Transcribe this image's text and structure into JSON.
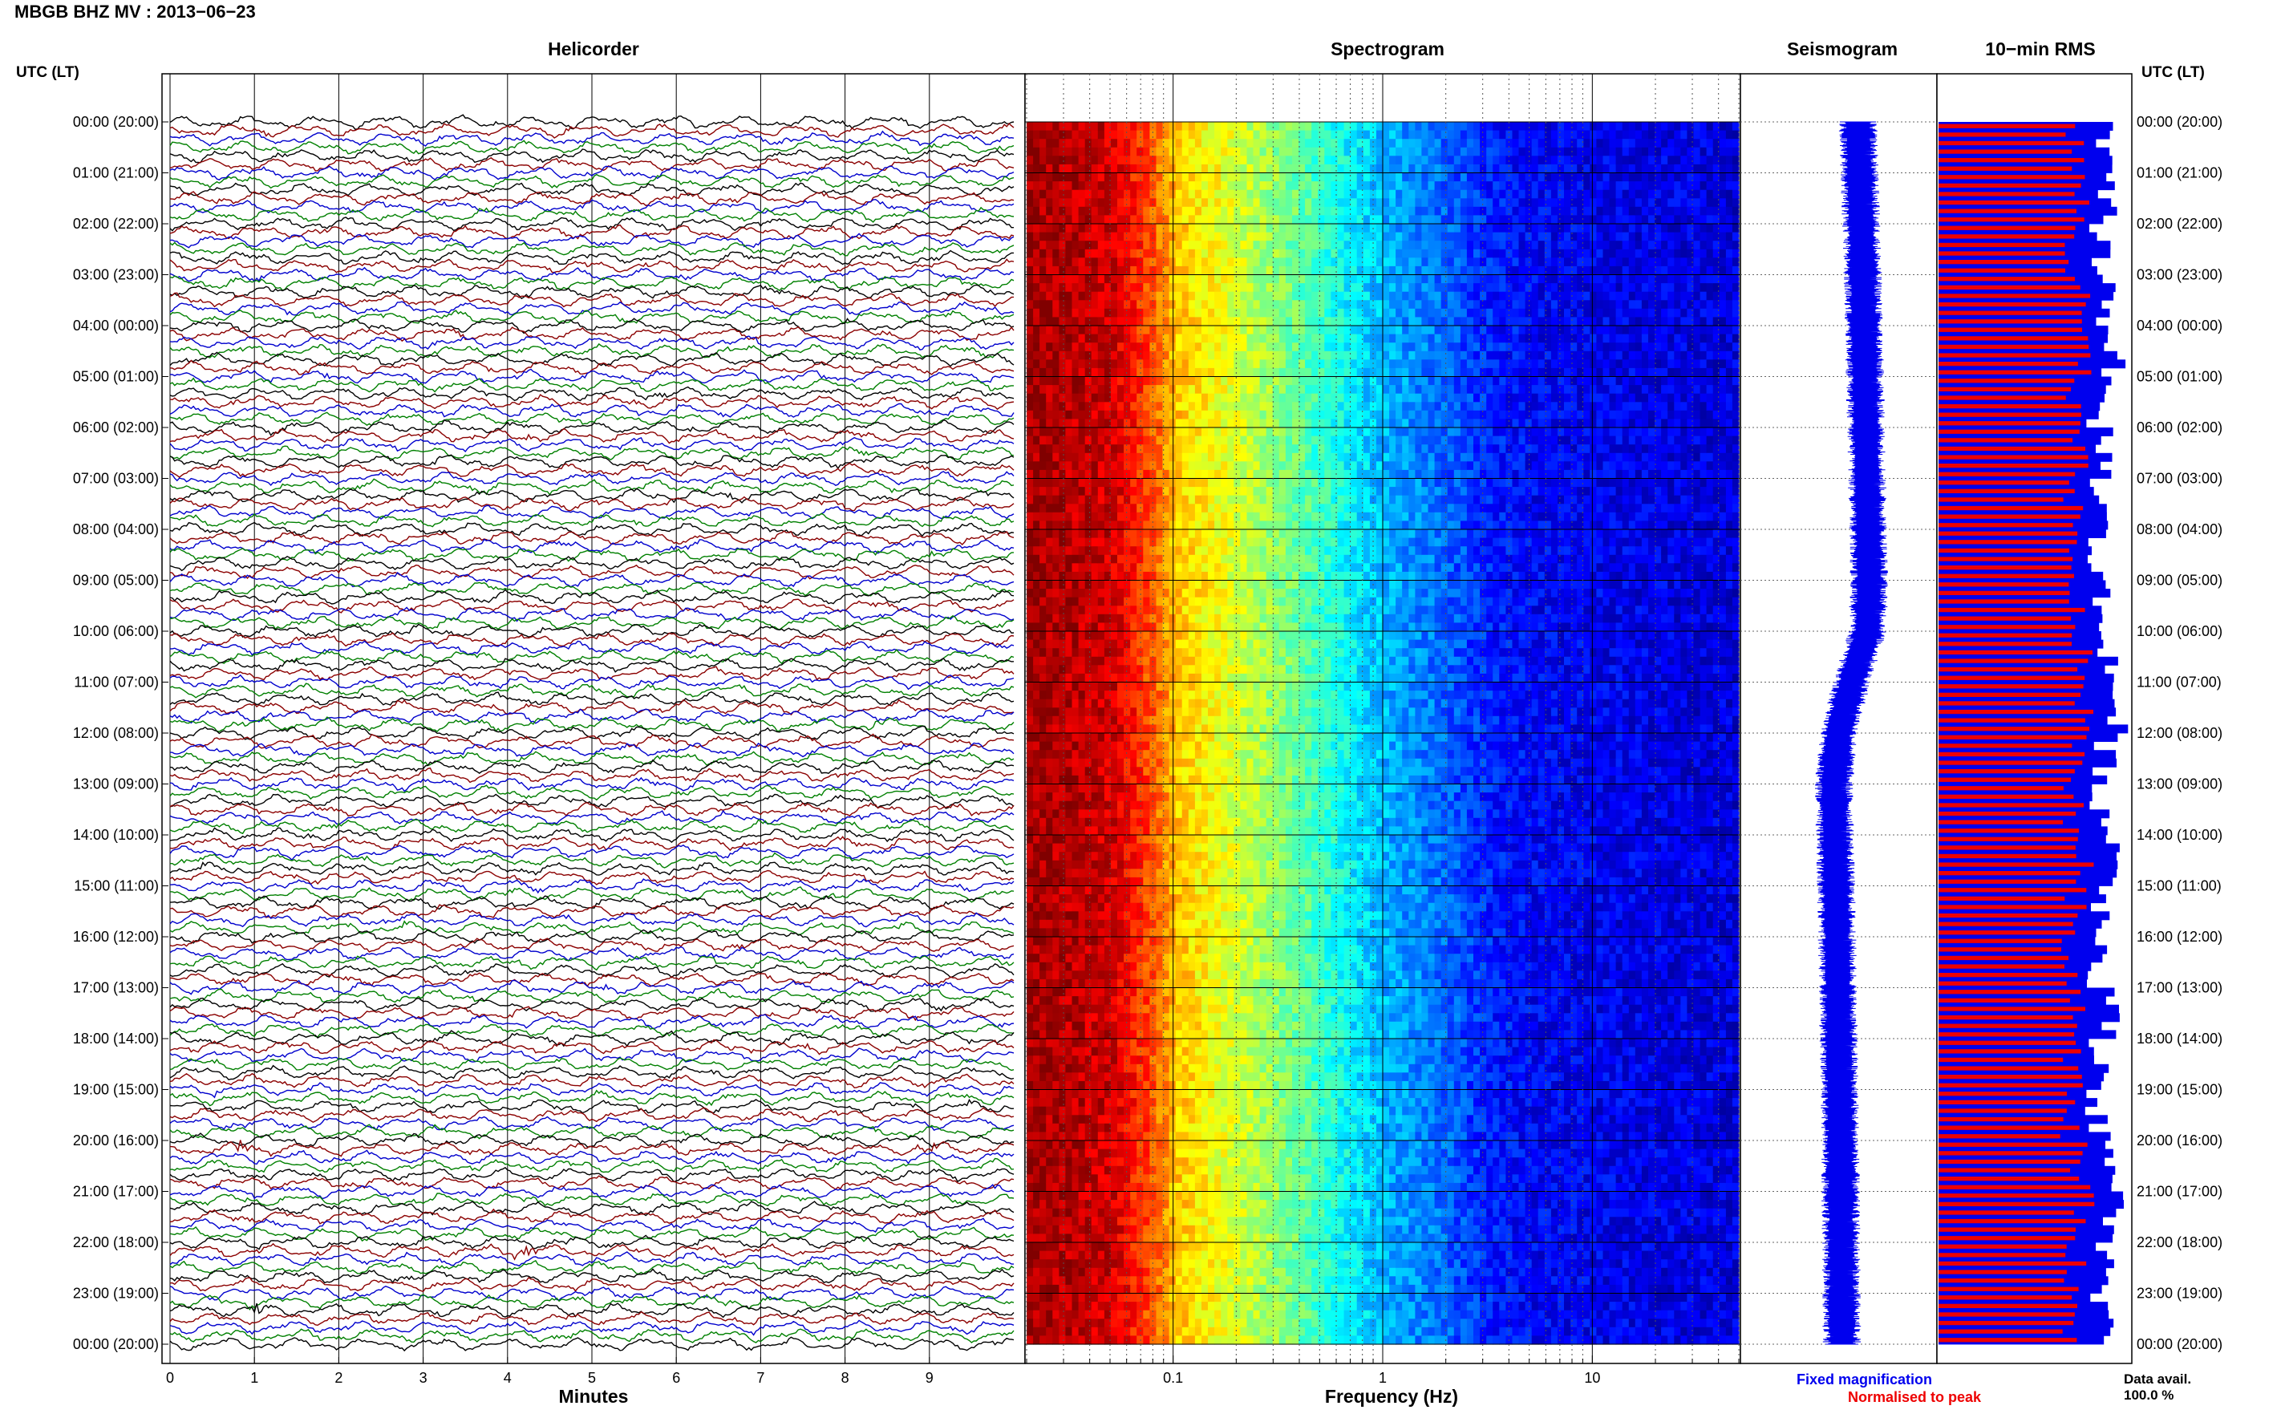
{
  "header": {
    "title": "MBGB BHZ MV : 2013−06−23"
  },
  "panels": {
    "helicorder": "Helicorder",
    "spectrogram": "Spectrogram",
    "seismogram": "Seismogram",
    "rms": "10−min RMS"
  },
  "axes": {
    "utc_label": "UTC (LT)",
    "minutes_label": "Minutes",
    "frequency_label": "Frequency (Hz)"
  },
  "legend": {
    "fixed": "Fixed magnification",
    "normalised": "Normalised to peak",
    "fixed_color": "#0000ee",
    "normalised_color": "#ee0000"
  },
  "data_avail": {
    "label": "Data avail.",
    "value": "100.0 %"
  },
  "colors": {
    "trace_cycle": [
      "#000000",
      "#8b0000",
      "#0000cd",
      "#008000"
    ],
    "rms_fixed": "#0000ee",
    "rms_normalised": "#ee0000"
  },
  "chart_data": [
    {
      "type": "line",
      "panel": "Helicorder",
      "xlabel": "Minutes",
      "x_ticks": [
        "0",
        "1",
        "2",
        "3",
        "4",
        "5",
        "6",
        "7",
        "8",
        "9"
      ],
      "xlim": [
        0,
        10
      ],
      "rows_per_hour": 6,
      "hours": 24,
      "y_ticks_utc": [
        "00:00",
        "01:00",
        "02:00",
        "03:00",
        "04:00",
        "05:00",
        "06:00",
        "07:00",
        "08:00",
        "09:00",
        "10:00",
        "11:00",
        "12:00",
        "13:00",
        "14:00",
        "15:00",
        "16:00",
        "17:00",
        "18:00",
        "19:00",
        "20:00",
        "21:00",
        "22:00",
        "23:00",
        "00:00"
      ],
      "y_ticks_lt": [
        "(20:00)",
        "(21:00)",
        "(22:00)",
        "(23:00)",
        "(00:00)",
        "(01:00)",
        "(02:00)",
        "(03:00)",
        "(04:00)",
        "(05:00)",
        "(06:00)",
        "(07:00)",
        "(08:00)",
        "(09:00)",
        "(10:00)",
        "(11:00)",
        "(12:00)",
        "(13:00)",
        "(14:00)",
        "(15:00)",
        "(16:00)",
        "(17:00)",
        "(18:00)",
        "(19:00)",
        "(20:00)"
      ],
      "events": [
        {
          "time": "11:50",
          "minute": 8.3
        },
        {
          "time": "19:00",
          "minute": 0.5
        },
        {
          "time": "20:10",
          "minute": 0.9
        },
        {
          "time": "20:10",
          "minute": 9.0
        },
        {
          "time": "22:10",
          "minute": 4.2
        },
        {
          "time": "23:20",
          "minute": 1.0
        }
      ]
    },
    {
      "type": "heatmap",
      "panel": "Spectrogram",
      "xlabel": "Frequency (Hz)",
      "x_scale": "log",
      "xlim": [
        0.02,
        50
      ],
      "x_ticks": [
        "0.1",
        "1",
        "10"
      ],
      "colormap": "jet",
      "power_profile": [
        {
          "freq": 0.02,
          "level": 0.97
        },
        {
          "freq": 0.05,
          "level": 0.92
        },
        {
          "freq": 0.08,
          "level": 0.78
        },
        {
          "freq": 0.1,
          "level": 0.68
        },
        {
          "freq": 0.2,
          "level": 0.58
        },
        {
          "freq": 0.4,
          "level": 0.47
        },
        {
          "freq": 0.7,
          "level": 0.36
        },
        {
          "freq": 1.0,
          "level": 0.3
        },
        {
          "freq": 2.0,
          "level": 0.22
        },
        {
          "freq": 3.0,
          "level": 0.16
        },
        {
          "freq": 5.0,
          "level": 0.12
        },
        {
          "freq": 10.0,
          "level": 0.11
        },
        {
          "freq": 20.0,
          "level": 0.1
        },
        {
          "freq": 50.0,
          "level": 0.09
        }
      ]
    },
    {
      "type": "line",
      "panel": "Seismogram",
      "hours": 24,
      "centerline": [
        {
          "hour": 0,
          "offset": 0.6
        },
        {
          "hour": 3,
          "offset": 0.75
        },
        {
          "hour": 6,
          "offset": 0.85
        },
        {
          "hour": 9,
          "offset": 0.95
        },
        {
          "hour": 10,
          "offset": 0.9
        },
        {
          "hour": 11,
          "offset": 0.4
        },
        {
          "hour": 12,
          "offset": 0.0
        },
        {
          "hour": 13,
          "offset": -0.15
        },
        {
          "hour": 16,
          "offset": -0.05
        },
        {
          "hour": 20,
          "offset": 0.05
        },
        {
          "hour": 24,
          "offset": 0.1
        }
      ]
    },
    {
      "type": "bar",
      "panel": "10-min RMS",
      "orientation": "horizontal",
      "series": [
        {
          "name": "Fixed magnification",
          "values": [
            0.85,
            0.88,
            0.86,
            0.89,
            0.92,
            0.84,
            0.87,
            0.86,
            0.83,
            0.85,
            0.9,
            0.93,
            0.88,
            0.86,
            0.94,
            0.87,
            0.85,
            0.89,
            0.86,
            0.84,
            0.91,
            0.92,
            0.87,
            0.86
          ]
        },
        {
          "name": "Normalised to peak",
          "values": [
            0.72,
            0.75,
            0.7,
            0.74,
            0.76,
            0.7,
            0.73,
            0.71,
            0.68,
            0.72,
            0.75,
            0.77,
            0.73,
            0.71,
            0.76,
            0.72,
            0.7,
            0.74,
            0.71,
            0.69,
            0.75,
            0.76,
            0.72,
            0.7
          ]
        }
      ]
    }
  ]
}
